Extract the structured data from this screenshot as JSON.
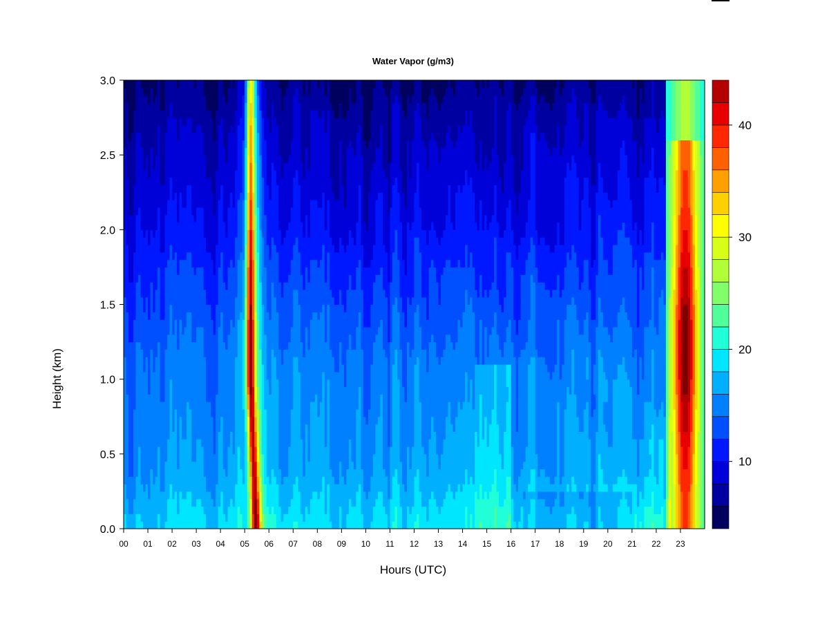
{
  "chart_data": {
    "type": "heatmap",
    "title": "Water Vapor (g/m3)",
    "xlabel": "Hours (UTC)",
    "ylabel": "Height (km)",
    "x_ticks": [
      "00",
      "01",
      "02",
      "03",
      "04",
      "05",
      "06",
      "07",
      "08",
      "09",
      "10",
      "11",
      "12",
      "13",
      "14",
      "15",
      "16",
      "17",
      "18",
      "19",
      "20",
      "21",
      "22",
      "23"
    ],
    "x_range": [
      0,
      24
    ],
    "y_ticks": [
      "0.0",
      "0.5",
      "1.0",
      "1.5",
      "2.0",
      "2.5",
      "3.0"
    ],
    "y_range": [
      0,
      3
    ],
    "colorbar": {
      "range": [
        4,
        44
      ],
      "levels": [
        4,
        6,
        8,
        10,
        12,
        14,
        16,
        18,
        20,
        22,
        24,
        26,
        28,
        30,
        32,
        34,
        36,
        38,
        40,
        42,
        44
      ],
      "tick_labels": [
        "10",
        "20",
        "30",
        "40"
      ],
      "tick_values": [
        10,
        20,
        30,
        40
      ],
      "colors": [
        "#00005e",
        "#0000a0",
        "#0000d8",
        "#0018ff",
        "#0050ff",
        "#0080ff",
        "#00b0ff",
        "#00e6ff",
        "#20ffd8",
        "#50ff9a",
        "#80ff68",
        "#b0ff38",
        "#d8ff18",
        "#ffff00",
        "#ffd000",
        "#ffa000",
        "#ff6000",
        "#ff2800",
        "#e80000",
        "#b40000",
        "#780000"
      ]
    },
    "grid": false,
    "legend": "colorbar-right",
    "features": [
      {
        "hour": 5.2,
        "note_value_peak": 40,
        "height_range_km": [
          0,
          3
        ]
      },
      {
        "hour": 23.2,
        "note_value_peak": 42,
        "height_range_km": [
          0,
          2.6
        ]
      }
    ]
  }
}
